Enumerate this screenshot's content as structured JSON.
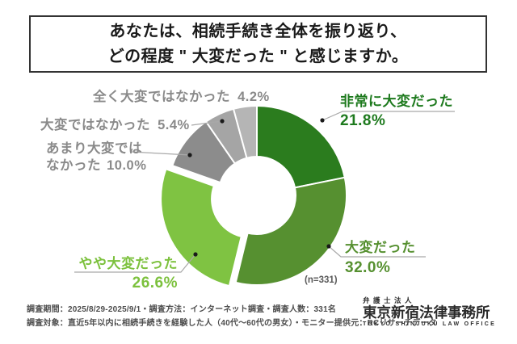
{
  "title": {
    "line1": "あなたは、相続手続き全体を振り返り、",
    "line2": "どの程度 \" 大変だった \" と感じますか。"
  },
  "chart_data": {
    "type": "pie",
    "subtype": "donut",
    "title": "あなたは、相続手続き全体を振り返り、どの程度\"大変だった\"と感じますか。",
    "n_label": "(n=331)",
    "start_angle_deg": 0,
    "direction": "clockwise",
    "inner_radius_ratio": 0.43,
    "exploded_index": 2,
    "legend_position": "callout-labels",
    "segments": [
      {
        "label": "非常に大変だった",
        "value": 21.8,
        "pct_label": "21.8%",
        "color": "#2b7c1e",
        "label_color": "#1e7a1e"
      },
      {
        "label": "大変だった",
        "value": 32.0,
        "pct_label": "32.0%",
        "color": "#569030",
        "label_color": "#569030"
      },
      {
        "label": "やや大変だった",
        "value": 26.6,
        "pct_label": "26.6%",
        "color": "#7fc342",
        "label_color": "#7cc13d"
      },
      {
        "label": "あまり大変ではなかった",
        "value": 10.0,
        "pct_label": "10.0%",
        "color": "#8c8c8c",
        "label_color": "#8a8a8a"
      },
      {
        "label": "大変ではなかった",
        "value": 5.4,
        "pct_label": "5.4%",
        "color": "#a5a5a5",
        "label_color": "#8a8a8a"
      },
      {
        "label": "全く大変ではなかった",
        "value": 4.2,
        "pct_label": "4.2%",
        "color": "#b5b5b5",
        "label_color": "#8a8a8a"
      }
    ],
    "colors": {
      "leader_line": "#a9a9a9",
      "leader_dot": "#1a1a1a",
      "slice_gap": "#ffffff"
    }
  },
  "footer": {
    "line1": "調査期間：2025/8/29-2025/9/1・調査方法：インターネット調査・調査人数：331名",
    "line2": "調査対象：直近5年以内に相続手続きを経験した人（40代～60代の男女）・モニター提供元：RCリサーチデータ"
  },
  "logo": {
    "firm_type": "弁護士法人",
    "name": "東京新宿法律事務所",
    "name_en": "TOKYO SHINJUKU LAW OFFICE"
  }
}
